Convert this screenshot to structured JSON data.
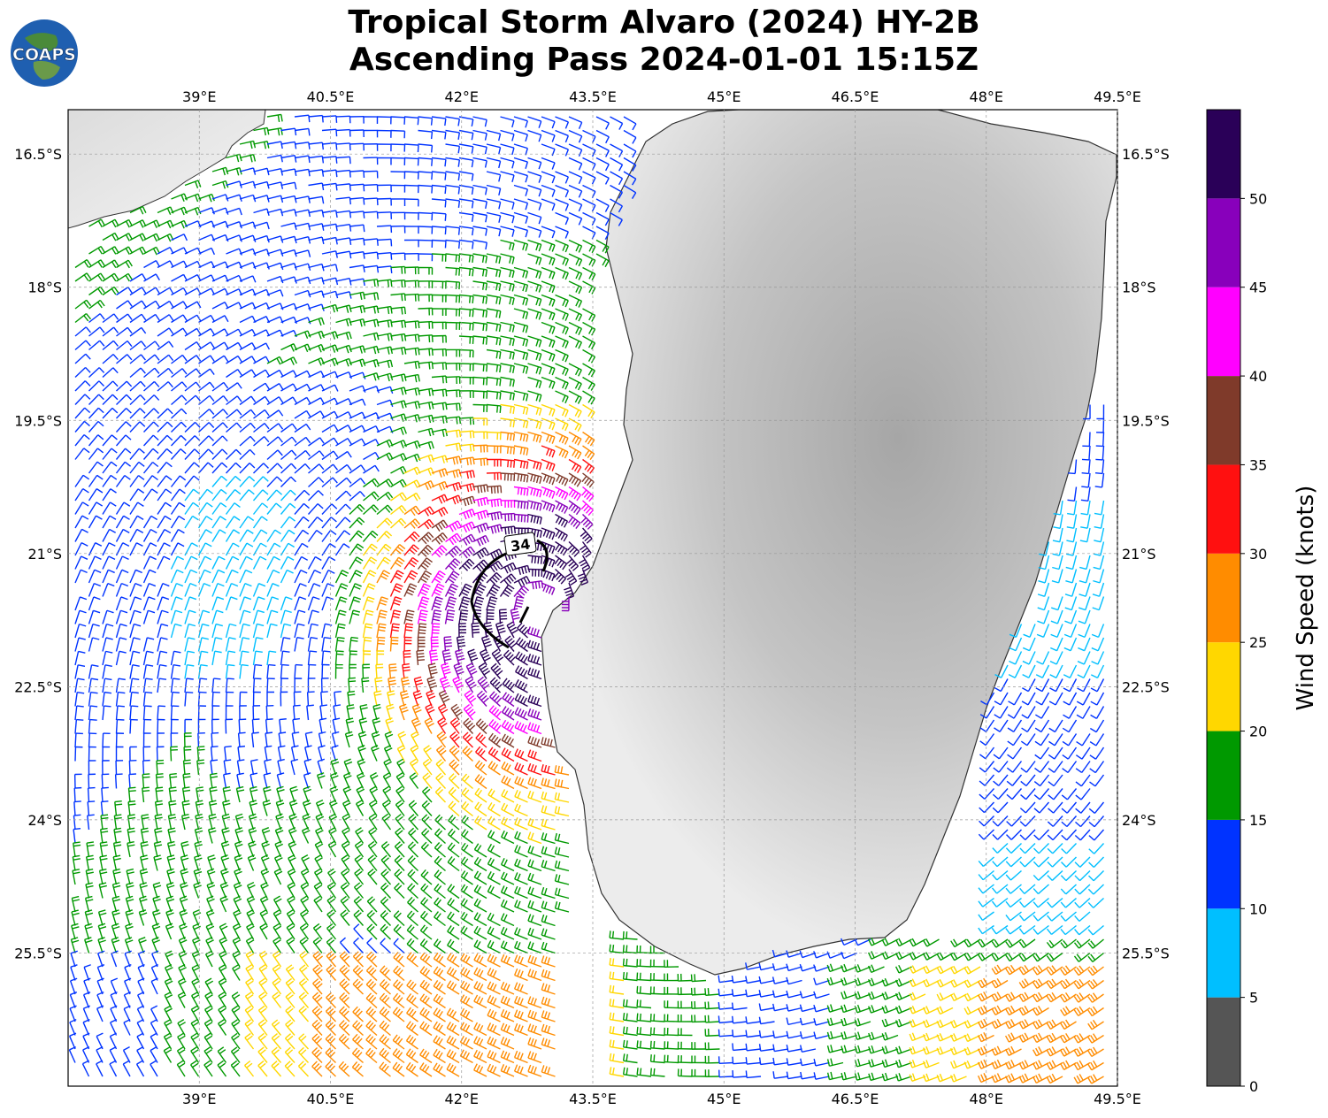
{
  "header": {
    "title_line1": "Tropical Storm Alvaro (2024) HY-2B",
    "title_line2": "Ascending Pass 2024-01-01 15:15Z",
    "logo_text": "COAPS"
  },
  "map": {
    "lon_range": [
      37.5,
      49.5
    ],
    "lat_range": [
      -27.0,
      -16.0
    ],
    "lon_ticks": [
      "39°E",
      "40.5°E",
      "42°E",
      "43.5°E",
      "45°E",
      "46.5°E",
      "48°E",
      "49.5°E"
    ],
    "lat_ticks": [
      "16.5°S",
      "18°S",
      "19.5°S",
      "21°S",
      "22.5°S",
      "24°S",
      "25.5°S"
    ],
    "lon_tick_values": [
      39,
      40.5,
      42,
      43.5,
      45,
      46.5,
      48,
      49.5
    ],
    "lat_tick_values": [
      -16.5,
      -18,
      -19.5,
      -21,
      -22.5,
      -24,
      -25.5
    ],
    "gridlines": true,
    "wind_radii_label": "34",
    "storm_center": {
      "lon": 42.9,
      "lat": -21.6
    }
  },
  "colorbar": {
    "label": "Wind Speed (knots)",
    "ticks": [
      "0",
      "5",
      "10",
      "15",
      "20",
      "25",
      "30",
      "35",
      "40",
      "45",
      "50"
    ],
    "levels": [
      0,
      5,
      10,
      15,
      20,
      25,
      30,
      35,
      40,
      45,
      50,
      55
    ],
    "colors": [
      "#555555",
      "#00bfff",
      "#0033ff",
      "#009900",
      "#ffd700",
      "#ff8c00",
      "#ff1010",
      "#7f3a2a",
      "#ff00ff",
      "#8800bb",
      "#2a0058"
    ]
  }
}
